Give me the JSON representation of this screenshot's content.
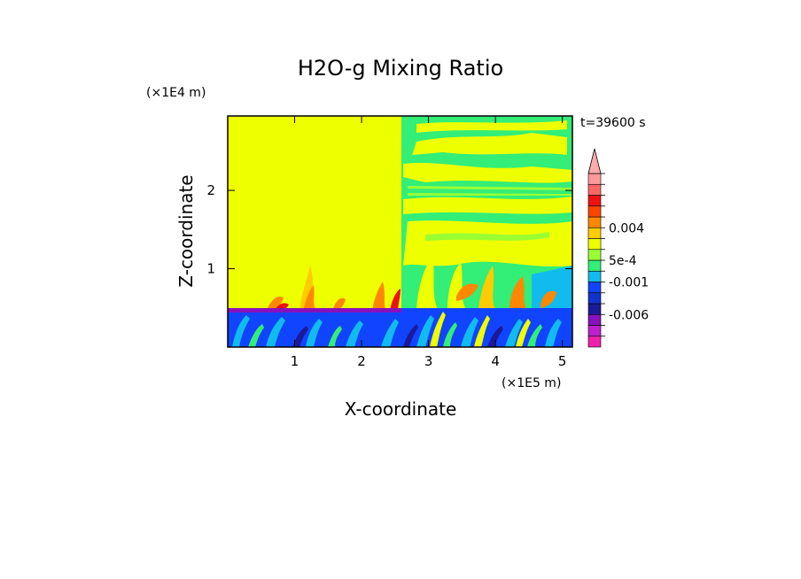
{
  "chart_data": {
    "type": "heatmap",
    "title": "H2O-g Mixing Ratio",
    "xlabel": "X-coordinate",
    "ylabel": "Z-coordinate",
    "x_unit": "(×1E5 m)",
    "y_unit": "(×1E4 m)",
    "time_label": "t=39600 s",
    "xlim": [
      0,
      5.15
    ],
    "ylim": [
      0,
      2.95
    ],
    "x_ticks": [
      1,
      2,
      3,
      4,
      5
    ],
    "y_ticks": [
      1,
      2
    ],
    "colorbar": {
      "levels": [
        "#ee22aa",
        "#bb22cc",
        "#8811bb",
        "#1a1a99",
        "#1133cc",
        "#1144ff",
        "#11bbee",
        "#33ee77",
        "#99ff33",
        "#eeff00",
        "#ffcc00",
        "#ff8800",
        "#ff4400",
        "#ee1111",
        "#ff6666",
        "#ff9999"
      ],
      "extend_max_color": "#ffaaaa",
      "labels": [
        {
          "text": "-0.006",
          "level": 3
        },
        {
          "text": "-0.001",
          "level": 6
        },
        {
          "text": "5e-4",
          "level": 8
        },
        {
          "text": "0.004",
          "level": 11
        }
      ]
    },
    "description_regions": [
      {
        "region": "upper-left",
        "x": [
          0,
          2.6
        ],
        "z": [
          0.5,
          2.95
        ],
        "color": "#eeff00"
      },
      {
        "region": "upper-right",
        "x": [
          2.6,
          5.15
        ],
        "z": [
          0.6,
          2.95
        ],
        "color": "#33ee77"
      },
      {
        "region": "boundary-layer",
        "x": [
          0,
          5.15
        ],
        "z": [
          0,
          0.5
        ],
        "color": "#1144ff"
      }
    ]
  }
}
